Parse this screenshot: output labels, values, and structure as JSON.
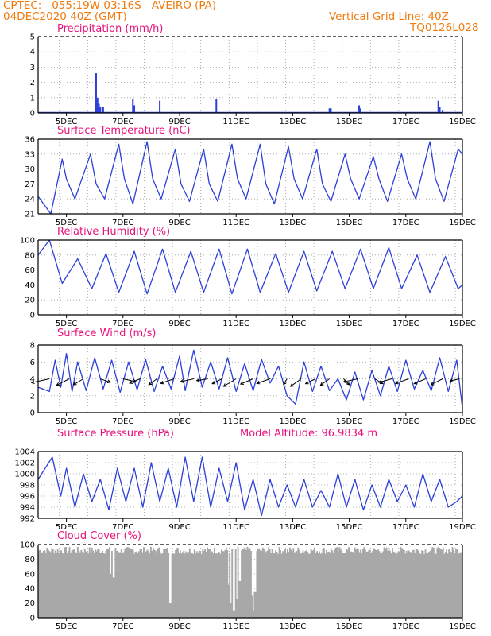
{
  "header": {
    "line1_left": "CPTEC:   055:19W-03:16S   AVEIRO (PA)",
    "line2_left": "04DEC2020 40Z (GMT)",
    "line1_right": "Vertical Grid Line: 40Z",
    "line2_right": "TQ0126L028"
  },
  "colors": {
    "header": "#f07a0c",
    "title": "#e8127c",
    "line": "#2b3fd9",
    "cloud": "#a8a8a8",
    "grid": "#9a9a9a"
  },
  "chart_data": [
    {
      "type": "bar",
      "title": "Precipitation (mm/h)",
      "xtick_labels": [
        "5DEC",
        "7DEC",
        "9DEC",
        "11DEC",
        "13DEC",
        "15DEC",
        "17DEC",
        "19DEC"
      ],
      "ylim": [
        0,
        5
      ],
      "yticks": [
        0,
        1,
        2,
        3,
        4,
        5
      ],
      "x_days": [
        6.05,
        6.1,
        6.15,
        6.2,
        6.3,
        7.35,
        7.4,
        8.3,
        10.3,
        14.3,
        14.35,
        15.35,
        15.4,
        18.15,
        18.2,
        18.3
      ],
      "values": [
        2.6,
        1.0,
        0.6,
        0.4,
        0.4,
        0.9,
        0.5,
        0.8,
        0.9,
        0.3,
        0.3,
        0.5,
        0.3,
        0.8,
        0.4,
        0.2
      ]
    },
    {
      "type": "line",
      "title": "Surface Temperature (nC)",
      "xtick_labels": [
        "5DEC",
        "7DEC",
        "9DEC",
        "11DEC",
        "13DEC",
        "15DEC",
        "17DEC",
        "19DEC"
      ],
      "ylim": [
        21,
        36
      ],
      "yticks": [
        21,
        24,
        27,
        30,
        33,
        36
      ],
      "x": [
        4.0,
        4.45,
        4.85,
        5.0,
        5.3,
        5.85,
        6.05,
        6.35,
        6.85,
        7.05,
        7.35,
        7.85,
        8.05,
        8.35,
        8.85,
        9.05,
        9.35,
        9.85,
        10.05,
        10.35,
        10.85,
        11.05,
        11.35,
        11.85,
        12.05,
        12.35,
        12.85,
        13.05,
        13.35,
        13.85,
        14.05,
        14.35,
        14.85,
        15.05,
        15.35,
        15.85,
        16.05,
        16.35,
        16.85,
        17.05,
        17.35,
        17.85,
        18.05,
        18.35,
        18.85,
        19.0
      ],
      "y": [
        24.5,
        21.0,
        32.0,
        28.0,
        24.0,
        33.0,
        27.0,
        24.0,
        35.0,
        28.0,
        23.0,
        35.5,
        28.0,
        24.0,
        34.0,
        27.0,
        23.5,
        34.0,
        27.0,
        23.5,
        35.0,
        28.0,
        24.0,
        35.0,
        27.0,
        23.0,
        34.5,
        28.0,
        24.0,
        34.0,
        27.0,
        23.5,
        33.0,
        28.0,
        24.0,
        32.5,
        28.0,
        23.5,
        33.0,
        28.0,
        24.0,
        35.5,
        28.0,
        23.5,
        34.0,
        33.0
      ]
    },
    {
      "type": "line",
      "title": "Relative Humidity (%)",
      "xtick_labels": [
        "5DEC",
        "7DEC",
        "9DEC",
        "11DEC",
        "13DEC",
        "15DEC",
        "17DEC",
        "19DEC"
      ],
      "ylim": [
        0,
        100
      ],
      "yticks": [
        0,
        20,
        40,
        60,
        80,
        100
      ],
      "x": [
        4.0,
        4.4,
        4.85,
        5.4,
        5.9,
        6.4,
        6.85,
        7.4,
        7.85,
        8.4,
        8.85,
        9.4,
        9.85,
        10.4,
        10.85,
        11.4,
        11.85,
        12.4,
        12.85,
        13.4,
        13.85,
        14.4,
        14.85,
        15.4,
        15.85,
        16.4,
        16.85,
        17.4,
        17.85,
        18.4,
        18.85,
        19.0
      ],
      "y": [
        80,
        100,
        42,
        75,
        35,
        82,
        30,
        85,
        28,
        88,
        30,
        85,
        30,
        88,
        28,
        88,
        30,
        82,
        30,
        85,
        32,
        85,
        35,
        88,
        35,
        90,
        35,
        80,
        30,
        78,
        35,
        40
      ]
    },
    {
      "type": "line",
      "title": "Surface Wind (m/s)",
      "xtick_labels": [
        "5DEC",
        "7DEC",
        "9DEC",
        "11DEC",
        "13DEC",
        "15DEC",
        "17DEC",
        "19DEC"
      ],
      "ylim": [
        0,
        8
      ],
      "yticks": [
        0,
        2,
        4,
        6,
        8
      ],
      "x": [
        4.0,
        4.4,
        4.6,
        4.8,
        5.0,
        5.2,
        5.4,
        5.7,
        6.0,
        6.3,
        6.6,
        6.9,
        7.2,
        7.5,
        7.8,
        8.1,
        8.4,
        8.7,
        9.0,
        9.2,
        9.5,
        9.8,
        10.1,
        10.4,
        10.7,
        11.0,
        11.3,
        11.6,
        11.9,
        12.2,
        12.5,
        12.8,
        13.1,
        13.4,
        13.7,
        14.0,
        14.3,
        14.6,
        14.9,
        15.2,
        15.5,
        15.8,
        16.1,
        16.4,
        16.7,
        17.0,
        17.3,
        17.6,
        17.9,
        18.2,
        18.5,
        18.8,
        19.0
      ],
      "y": [
        3.0,
        2.5,
        6.2,
        3.0,
        7.0,
        2.5,
        6.0,
        2.6,
        6.5,
        2.8,
        6.2,
        2.4,
        6.0,
        2.7,
        6.3,
        2.5,
        5.5,
        2.8,
        6.7,
        2.6,
        7.4,
        3.0,
        6.0,
        2.8,
        6.5,
        2.5,
        5.8,
        2.6,
        6.3,
        3.5,
        5.5,
        2.0,
        1.0,
        6.0,
        2.5,
        5.5,
        2.6,
        4.0,
        1.5,
        4.8,
        1.5,
        5.0,
        2.0,
        5.5,
        2.5,
        6.2,
        2.8,
        5.0,
        2.6,
        6.5,
        2.5,
        6.2,
        0.5
      ],
      "arrows": [
        {
          "day": 4.4,
          "dir": 250,
          "len": 1
        },
        {
          "day": 5.1,
          "dir": 230,
          "len": 0.8
        },
        {
          "day": 5.6,
          "dir": 225,
          "len": 0.6
        },
        {
          "day": 6.2,
          "dir": 120,
          "len": 0.4
        },
        {
          "day": 7.0,
          "dir": 110,
          "len": 0.6
        },
        {
          "day": 7.6,
          "dir": 235,
          "len": 0.5
        },
        {
          "day": 8.2,
          "dir": 220,
          "len": 0.5
        },
        {
          "day": 8.8,
          "dir": 240,
          "len": 0.7
        },
        {
          "day": 9.5,
          "dir": 250,
          "len": 0.6
        },
        {
          "day": 10.0,
          "dir": 255,
          "len": 0.4
        },
        {
          "day": 10.5,
          "dir": 230,
          "len": 0.5
        },
        {
          "day": 11.0,
          "dir": 225,
          "len": 0.9
        },
        {
          "day": 11.6,
          "dir": 235,
          "len": 0.7
        },
        {
          "day": 12.2,
          "dir": 240,
          "len": 0.7
        },
        {
          "day": 12.8,
          "dir": 200,
          "len": 0.3
        },
        {
          "day": 13.3,
          "dir": 220,
          "len": 0.8
        },
        {
          "day": 13.8,
          "dir": 230,
          "len": 0.5
        },
        {
          "day": 14.3,
          "dir": 220,
          "len": 0.6
        },
        {
          "day": 14.8,
          "dir": 150,
          "len": 0.4
        },
        {
          "day": 15.3,
          "dir": 250,
          "len": 0.7
        },
        {
          "day": 15.9,
          "dir": 135,
          "len": 0.4
        },
        {
          "day": 16.5,
          "dir": 245,
          "len": 0.6
        },
        {
          "day": 17.1,
          "dir": 240,
          "len": 0.7
        },
        {
          "day": 17.7,
          "dir": 235,
          "len": 0.6
        },
        {
          "day": 18.3,
          "dir": 230,
          "len": 0.7
        },
        {
          "day": 18.9,
          "dir": 250,
          "len": 0.3
        }
      ]
    },
    {
      "type": "line",
      "title": "Surface Pressure (hPa)",
      "annotation": "Model Altitude: 96.9834 m",
      "xtick_labels": [
        "5DEC",
        "7DEC",
        "9DEC",
        "11DEC",
        "13DEC",
        "15DEC",
        "17DEC",
        "19DEC"
      ],
      "ylim": [
        992,
        1004
      ],
      "yticks": [
        992,
        994,
        996,
        998,
        1000,
        1002,
        1004
      ],
      "x": [
        4.0,
        4.5,
        4.8,
        5.0,
        5.3,
        5.6,
        5.9,
        6.2,
        6.5,
        6.8,
        7.1,
        7.4,
        7.7,
        8.0,
        8.3,
        8.6,
        8.9,
        9.2,
        9.5,
        9.8,
        10.1,
        10.4,
        10.7,
        11.0,
        11.3,
        11.6,
        11.9,
        12.2,
        12.5,
        12.8,
        13.1,
        13.4,
        13.7,
        14.0,
        14.3,
        14.6,
        14.9,
        15.2,
        15.5,
        15.8,
        16.1,
        16.4,
        16.7,
        17.0,
        17.3,
        17.6,
        17.9,
        18.2,
        18.5,
        18.8,
        19.0
      ],
      "y": [
        999,
        1003,
        996,
        1001,
        994,
        1000,
        995,
        999,
        993.5,
        1001,
        995,
        1001,
        994,
        1002,
        995,
        1001,
        994,
        1003,
        995,
        1003,
        994,
        1001,
        995,
        1002,
        993.5,
        999,
        992.5,
        999,
        994,
        998,
        994,
        999,
        994,
        997,
        994,
        1000,
        994,
        999,
        993.5,
        998,
        994,
        999,
        995,
        998,
        994,
        1000,
        995,
        999,
        994,
        995,
        996
      ]
    },
    {
      "type": "bar",
      "title": "Cloud Cover (%)",
      "xtick_labels": [
        "5DEC",
        "7DEC",
        "9DEC",
        "11DEC",
        "13DEC",
        "15DEC",
        "17DEC",
        "19DEC"
      ],
      "ylim": [
        0,
        100
      ],
      "yticks": [
        0,
        20,
        40,
        60,
        80,
        100
      ],
      "note": "hourly cover mostly 85-98%, with gaps near 8.7DEC, 10.8-11.0DEC, 11.6DEC",
      "baseline": 92,
      "dips": [
        {
          "day": 6.55,
          "value": 60
        },
        {
          "day": 6.65,
          "value": 55
        },
        {
          "day": 8.65,
          "value": 20
        },
        {
          "day": 10.7,
          "value": 45
        },
        {
          "day": 10.8,
          "value": 20
        },
        {
          "day": 10.9,
          "value": 10
        },
        {
          "day": 11.0,
          "value": 25
        },
        {
          "day": 11.1,
          "value": 50
        },
        {
          "day": 11.55,
          "value": 30
        },
        {
          "day": 11.6,
          "value": 10
        },
        {
          "day": 11.65,
          "value": 35
        }
      ]
    }
  ]
}
